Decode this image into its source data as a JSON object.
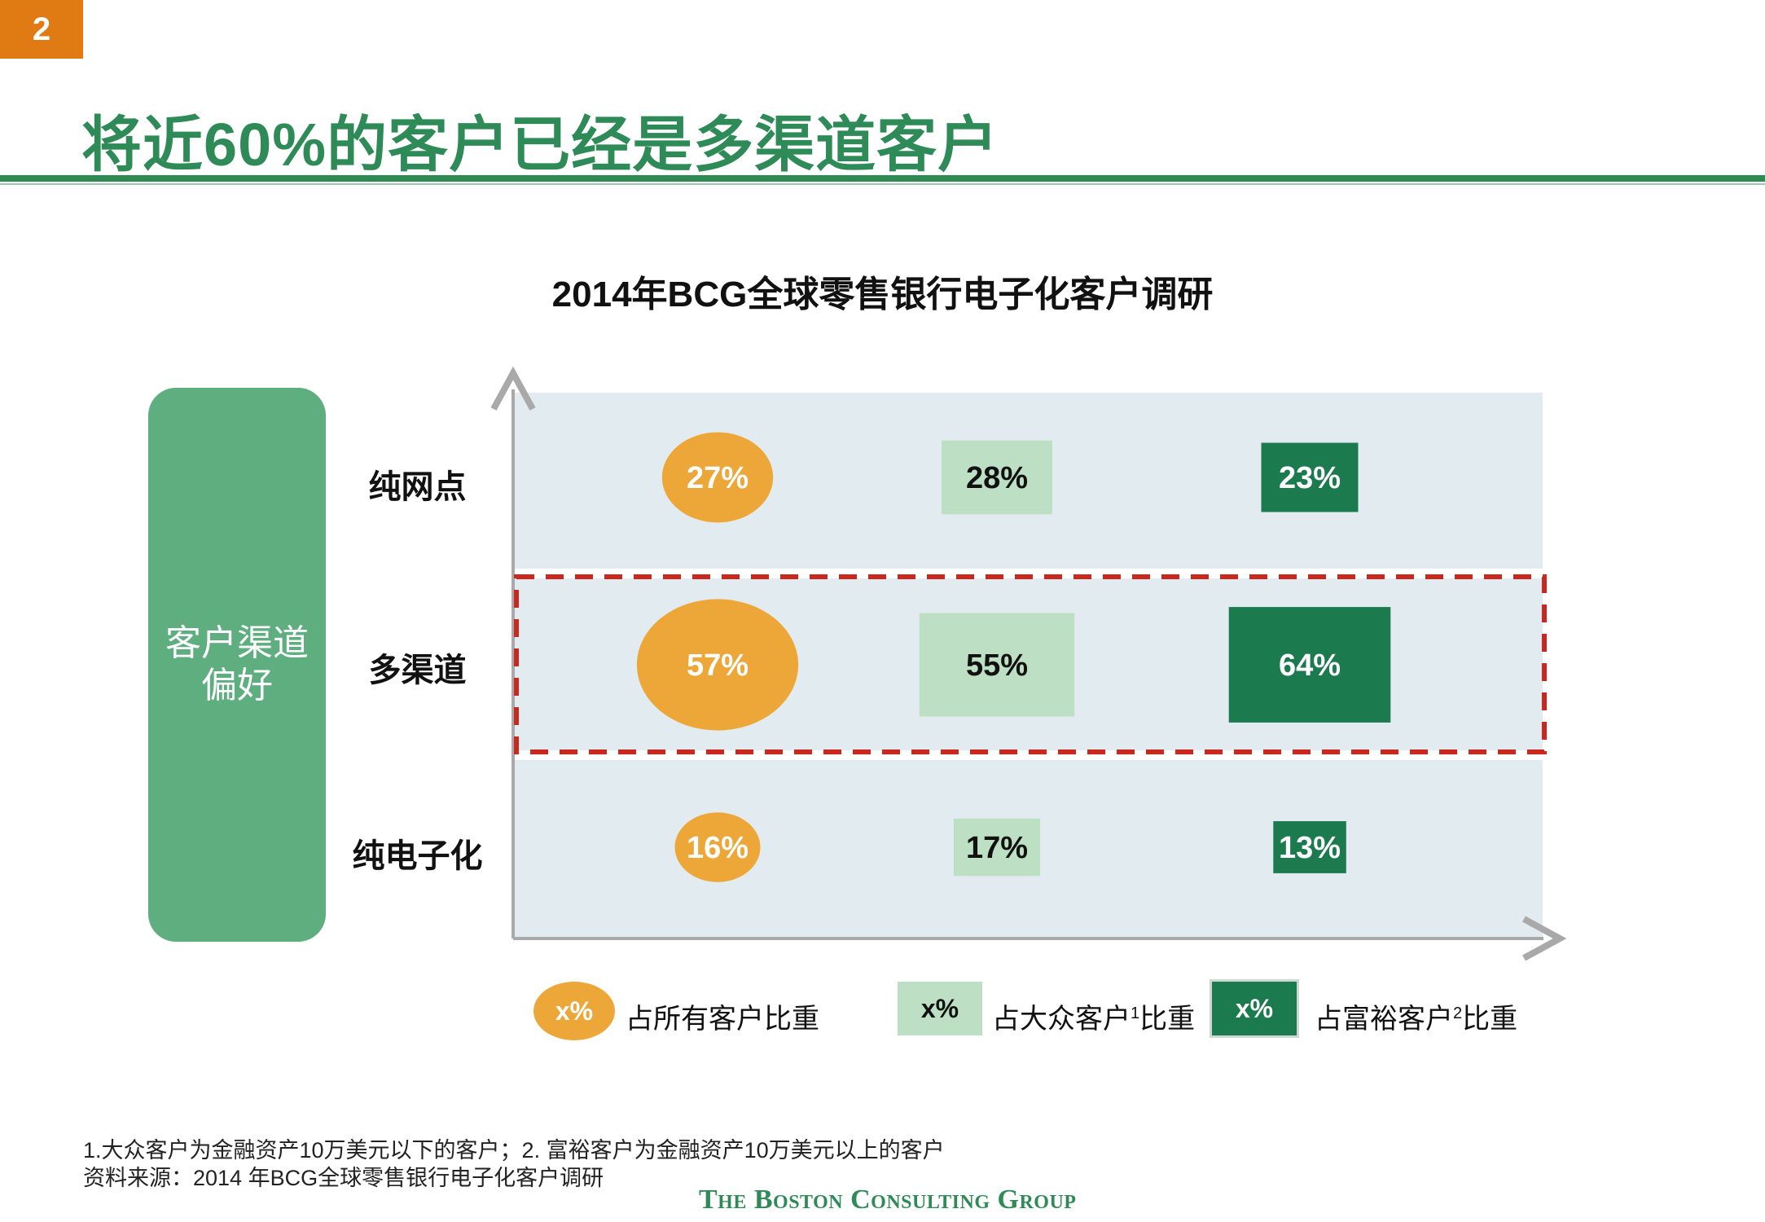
{
  "page_number": "2",
  "title": "将近60%的客户已经是多渠道客户",
  "pref_label_line1": "客户渠道",
  "pref_label_line2": "偏好",
  "colors": {
    "all": "#EDA738",
    "mass": "#BDE0C4",
    "affluent": "#1C7A4F",
    "background": "#E2ECF0",
    "highlight": "#C8281E",
    "accent": "#2E8B57"
  },
  "chart_data": {
    "type": "table",
    "title": "2014年BCG全球零售银行电子化客户调研",
    "rows": [
      "纯网点",
      "多渠道",
      "纯电子化"
    ],
    "series": [
      {
        "name": "占所有客户比重",
        "shape": "ellipse",
        "values": [
          27,
          57,
          16
        ],
        "labels": [
          "27%",
          "57%",
          "16%"
        ]
      },
      {
        "name": "占大众客户比重",
        "shape": "square-light",
        "values": [
          28,
          55,
          17
        ],
        "labels": [
          "28%",
          "55%",
          "17%"
        ]
      },
      {
        "name": "占富裕客户比重",
        "shape": "square-dark",
        "values": [
          23,
          64,
          13
        ],
        "labels": [
          "23%",
          "64%",
          "13%"
        ]
      }
    ],
    "highlighted_row": "多渠道"
  },
  "legend": {
    "mark_text": "x%",
    "items": [
      {
        "text": "占所有客户比重",
        "sup": ""
      },
      {
        "text": "占大众客户",
        "sup": "1",
        "suffix": "比重"
      },
      {
        "text": "占富裕客户",
        "sup": "2",
        "suffix": "比重"
      }
    ]
  },
  "footnotes": {
    "line1": "1.大众客户为金融资产10万美元以下的客户；2. 富裕客户为金融资产10万美元以上的客户",
    "line2": "资料来源：2014 年BCG全球零售银行电子化客户调研"
  },
  "brand": "The Boston Consulting Group"
}
